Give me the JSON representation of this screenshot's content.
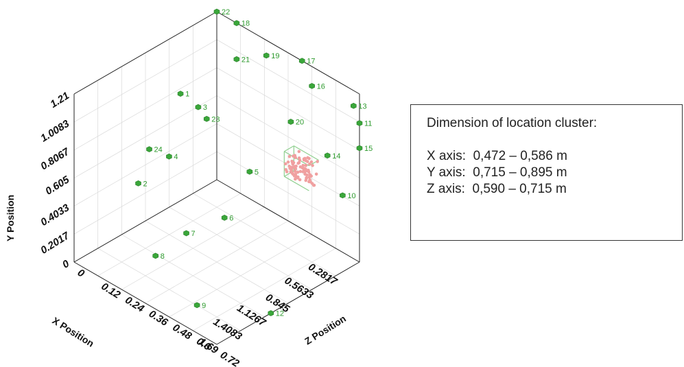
{
  "chart_data": {
    "type": "scatter",
    "projection": "3d-isometric",
    "axes": {
      "x": {
        "label": "X Position",
        "ticks": [
          "0.2817",
          "0.5633",
          "0.845",
          "1.1267",
          "1.4083",
          "1.69"
        ],
        "range": [
          0,
          1.69
        ]
      },
      "y": {
        "label": "Y Position",
        "ticks": [
          "0",
          "0.2017",
          "0.4033",
          "0.605",
          "0.8067",
          "1.0083",
          "1.21"
        ],
        "range": [
          0,
          1.21
        ]
      },
      "z": {
        "label": "Z Position",
        "ticks": [
          "0",
          "0.12",
          "0.24",
          "0.36",
          "0.48",
          "0.6",
          "0.72"
        ],
        "range": [
          0,
          0.72
        ]
      }
    },
    "grid": true,
    "colors": {
      "nodes": "#3aa63a",
      "cluster": "#f0a0a0",
      "labels": "#2e9a2e",
      "frame": "#222222",
      "grid": "#d9d9d9"
    },
    "nodes": [
      {
        "label": "1",
        "x": 0.43,
        "y": 0.77,
        "z": 0.0
      },
      {
        "label": "2",
        "x": 0.93,
        "y": 0.3,
        "z": 0.0
      },
      {
        "label": "3",
        "x": 0.22,
        "y": 0.6,
        "z": 0.0
      },
      {
        "label": "4",
        "x": 0.8,
        "y": 0.53,
        "z": 0.1
      },
      {
        "label": "5",
        "x": 0.55,
        "y": 0.58,
        "z": 0.4
      },
      {
        "label": "6",
        "x": 1.2,
        "y": 0.6,
        "z": 0.55
      },
      {
        "label": "7",
        "x": 1.3,
        "y": 0.4,
        "z": 0.4
      },
      {
        "label": "8",
        "x": 1.5,
        "y": 0.25,
        "z": 0.33
      },
      {
        "label": "9",
        "x": 1.69,
        "y": 0.2,
        "z": 0.62
      },
      {
        "label": "10",
        "x": 0.2,
        "y": 0.55,
        "z": 0.72
      },
      {
        "label": "11",
        "x": 0.0,
        "y": 1.0,
        "z": 0.72
      },
      {
        "label": "12",
        "x": 1.05,
        "y": 0.0,
        "z": 0.72
      },
      {
        "label": "13",
        "x": 0.0,
        "y": 1.1,
        "z": 0.69
      },
      {
        "label": "14",
        "x": 0.38,
        "y": 0.9,
        "z": 0.72
      },
      {
        "label": "15",
        "x": 0.0,
        "y": 0.82,
        "z": 0.72
      },
      {
        "label": "16",
        "x": 0.0,
        "y": 1.07,
        "z": 0.48
      },
      {
        "label": "17",
        "x": 0.0,
        "y": 1.21,
        "z": 0.43
      },
      {
        "label": "18",
        "x": 0.0,
        "y": 1.21,
        "z": 0.1
      },
      {
        "label": "19",
        "x": 0.0,
        "y": 1.1,
        "z": 0.25
      },
      {
        "label": "20",
        "x": 0.25,
        "y": 0.9,
        "z": 0.48
      },
      {
        "label": "21",
        "x": 0.0,
        "y": 0.95,
        "z": 0.1
      },
      {
        "label": "22",
        "x": 0.0,
        "y": 1.21,
        "z": 0.0
      },
      {
        "label": "23",
        "x": 0.12,
        "y": 0.48,
        "z": 0.0
      },
      {
        "label": "24",
        "x": 0.8,
        "y": 0.5,
        "z": 0.0
      }
    ],
    "cluster": {
      "x_range": [
        0.472,
        0.586
      ],
      "y_range": [
        0.715,
        0.895
      ],
      "z_range": [
        0.59,
        0.715
      ],
      "point_count": 80
    }
  },
  "info": {
    "title": "Dimension of location cluster:",
    "rows": [
      {
        "axis": "X axis:",
        "range": "0,472 – 0,586 m"
      },
      {
        "axis": "Y axis:",
        "range": "0,715 – 0,895 m"
      },
      {
        "axis": "Z axis:",
        "range": "0,590 – 0,715 m"
      }
    ]
  }
}
